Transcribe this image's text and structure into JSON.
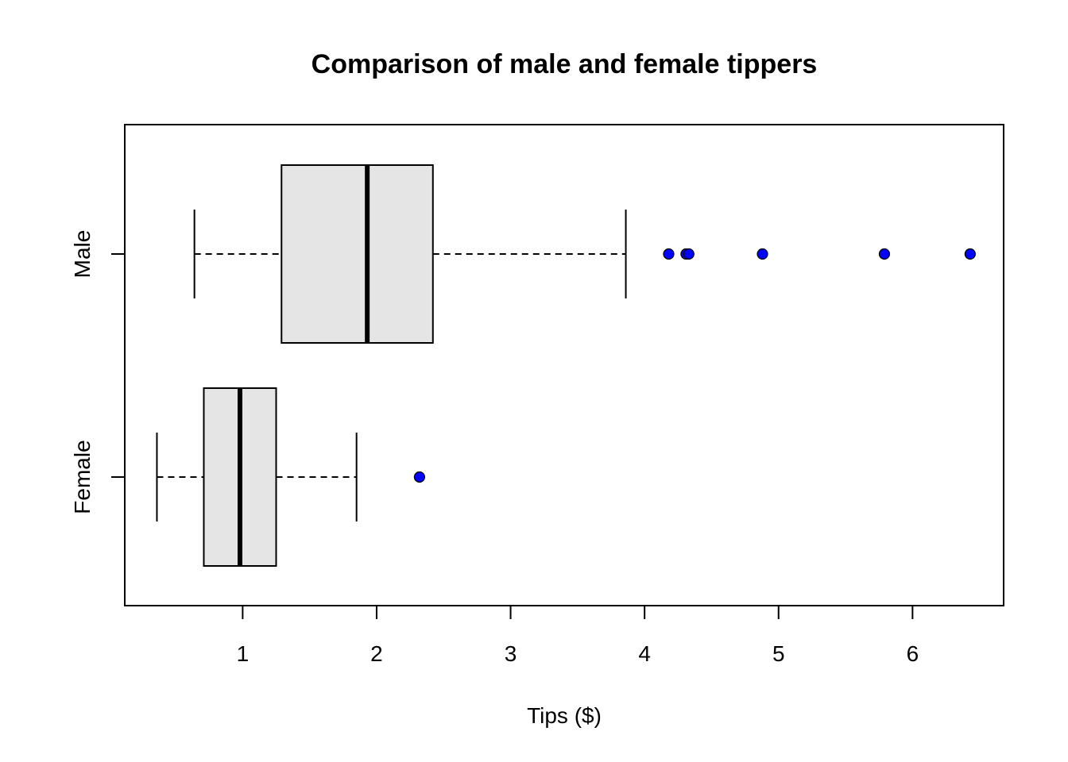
{
  "chart_data": {
    "type": "boxplot",
    "orientation": "horizontal",
    "title": "Comparison of male and female tippers",
    "xlabel": "Tips ($)",
    "ylabel": "",
    "xlim": [
      0.12,
      6.68
    ],
    "xticks": [
      1,
      2,
      3,
      4,
      5,
      6
    ],
    "grid": false,
    "colors": {
      "box_fill": "#e5e5e5",
      "outlier_fill": "#0000ff",
      "line": "#000000"
    },
    "categories": [
      "Female",
      "Male"
    ],
    "series": [
      {
        "name": "Female",
        "whisker_low": 0.36,
        "q1": 0.71,
        "median": 0.98,
        "q3": 1.25,
        "whisker_high": 1.85,
        "outliers": [
          2.32
        ]
      },
      {
        "name": "Male",
        "whisker_low": 0.64,
        "q1": 1.29,
        "median": 1.93,
        "q3": 2.42,
        "whisker_high": 3.86,
        "outliers": [
          4.18,
          4.31,
          4.33,
          4.88,
          5.79,
          6.43
        ]
      }
    ]
  }
}
